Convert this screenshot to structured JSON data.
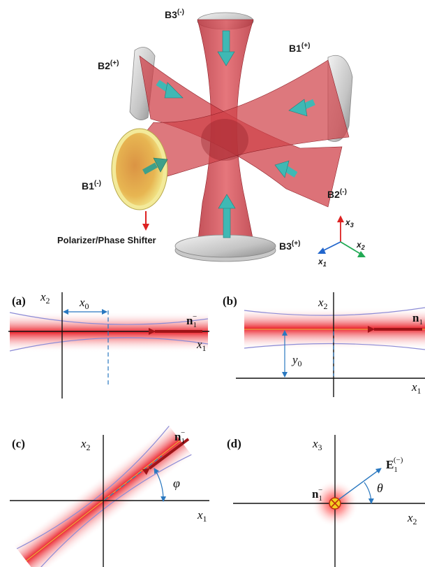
{
  "top_figure": {
    "beams": {
      "b3_minus": "B3",
      "b3_minus_sup": "(-)",
      "b1_plus": "B1",
      "b1_plus_sup": "(+)",
      "b2_plus": "B2",
      "b2_plus_sup": "(+)",
      "b1_minus": "B1",
      "b1_minus_sup": "(-)",
      "b2_minus": "B2",
      "b2_minus_sup": "(-)",
      "b3_plus": "B3",
      "b3_plus_sup": "(+)"
    },
    "polarizer_label": "Polarizer/Phase Shifter",
    "axes": {
      "x1": "x",
      "x1_sub": "1",
      "x2": "x",
      "x2_sub": "2",
      "x3": "x",
      "x3_sub": "3"
    },
    "colors": {
      "beam": "#c8323c",
      "arrow": "#3fb8b4",
      "mirror": "#c8c8c8",
      "polarizer": "#e8d860",
      "axis_x1": "#2266cc",
      "axis_x2": "#22aa55",
      "axis_x3": "#dd2222"
    }
  },
  "panels": {
    "a": {
      "tag": "(a)",
      "y_axis": "x",
      "y_axis_sub": "2",
      "x_axis": "x",
      "x_axis_sub": "1",
      "offset_label": "x",
      "offset_sub": "0",
      "vector": "n",
      "vector_sub": "1",
      "vector_sup": "−"
    },
    "b": {
      "tag": "(b)",
      "y_axis": "x",
      "y_axis_sub": "2",
      "x_axis": "x",
      "x_axis_sub": "1",
      "offset_label": "y",
      "offset_sub": "0",
      "vector": "n",
      "vector_sub": "1"
    },
    "c": {
      "tag": "(c)",
      "y_axis": "x",
      "y_axis_sub": "2",
      "x_axis": "x",
      "x_axis_sub": "1",
      "angle": "φ",
      "vector": "n",
      "vector_sub": "1",
      "vector_sup": "−"
    },
    "d": {
      "tag": "(d)",
      "y_axis": "x",
      "y_axis_sub": "3",
      "x_axis": "x",
      "x_axis_sub": "2",
      "angle": "θ",
      "vector": "n",
      "vector_sub": "1",
      "vector_sup": "−",
      "field": "E",
      "field_sub": "1",
      "field_sup": "(−)"
    }
  }
}
